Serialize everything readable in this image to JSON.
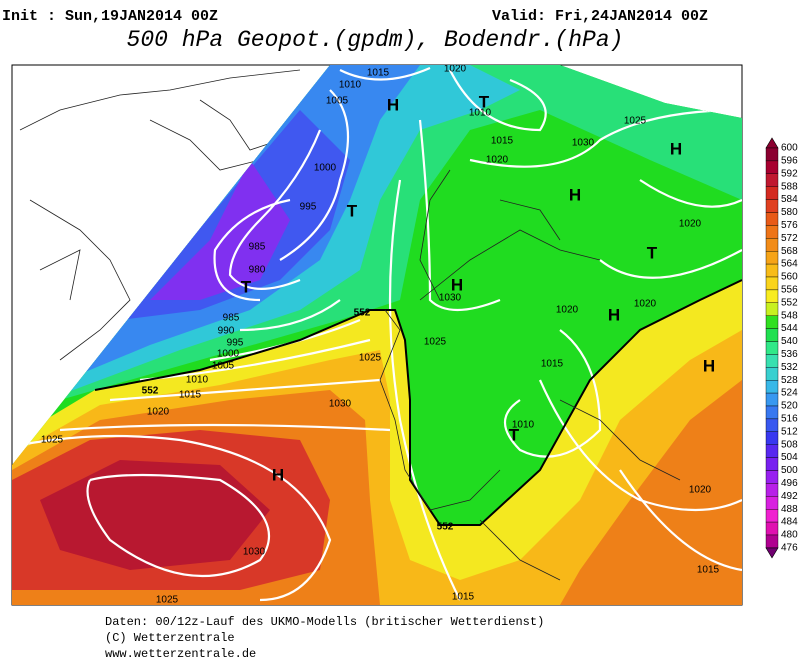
{
  "header": {
    "init": "Init : Sun,19JAN2014 00Z",
    "valid": "Valid: Fri,24JAN2014 00Z",
    "title": "500 hPa Geopot.(gpdm), Bodendr.(hPa)"
  },
  "map": {
    "isobar_labels": [
      1015,
      1020,
      1010,
      1005,
      1010,
      1015,
      1025,
      1030,
      1020,
      1000,
      995,
      985,
      980,
      1020,
      1030,
      1020,
      1020,
      985,
      990,
      995,
      1000,
      1005,
      1025,
      1025,
      1010,
      1015,
      1015,
      1020,
      1030,
      1025,
      1010,
      1020,
      1030,
      1015,
      1025,
      1015
    ],
    "contour_labels": [
      552,
      552,
      552
    ],
    "centers": [
      "H",
      "T",
      "T",
      "H",
      "H",
      "T",
      "T",
      "H",
      "H",
      "H",
      "T",
      "H"
    ]
  },
  "colorbar": {
    "labels": [
      600,
      596,
      592,
      588,
      584,
      580,
      576,
      572,
      568,
      564,
      560,
      556,
      552,
      548,
      544,
      540,
      536,
      532,
      528,
      524,
      520,
      516,
      512,
      508,
      504,
      500,
      496,
      492,
      488,
      484,
      480,
      476
    ]
  },
  "footer": {
    "lines": [
      "Daten: 00/12z-Lauf des UKMO-Modells (britischer Wetterdienst)",
      "(C) Wetterzentrale",
      "www.wetterzentrale.de"
    ]
  }
}
